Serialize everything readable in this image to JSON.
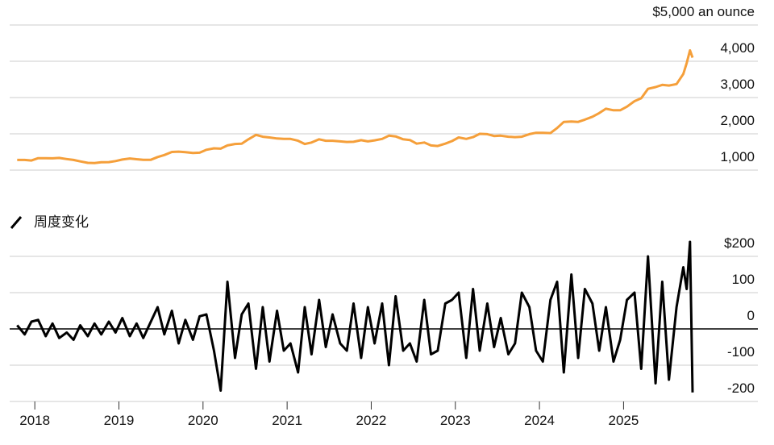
{
  "chart_data": [
    {
      "type": "line",
      "color": "#f59f3a",
      "x": [
        2017.79,
        2017.88,
        2017.96,
        2018.04,
        2018.13,
        2018.21,
        2018.29,
        2018.38,
        2018.46,
        2018.54,
        2018.63,
        2018.71,
        2018.79,
        2018.88,
        2018.96,
        2019.04,
        2019.13,
        2019.21,
        2019.29,
        2019.38,
        2019.46,
        2019.54,
        2019.63,
        2019.71,
        2019.79,
        2019.88,
        2019.96,
        2020.04,
        2020.13,
        2020.21,
        2020.29,
        2020.38,
        2020.46,
        2020.54,
        2020.63,
        2020.71,
        2020.79,
        2020.88,
        2020.96,
        2021.04,
        2021.13,
        2021.21,
        2021.29,
        2021.38,
        2021.46,
        2021.54,
        2021.63,
        2021.71,
        2021.79,
        2021.88,
        2021.96,
        2022.04,
        2022.13,
        2022.21,
        2022.29,
        2022.38,
        2022.46,
        2022.54,
        2022.63,
        2022.71,
        2022.79,
        2022.88,
        2022.96,
        2023.04,
        2023.13,
        2023.21,
        2023.29,
        2023.38,
        2023.46,
        2023.54,
        2023.63,
        2023.71,
        2023.79,
        2023.88,
        2023.96,
        2024.04,
        2024.13,
        2024.21,
        2024.29,
        2024.38,
        2024.46,
        2024.54,
        2024.63,
        2024.71,
        2024.79,
        2024.88,
        2024.96,
        2025.04,
        2025.13,
        2025.21,
        2025.29,
        2025.38,
        2025.46,
        2025.54,
        2025.63,
        2025.71,
        2025.75,
        2025.79,
        2025.82
      ],
      "values": [
        1280,
        1280,
        1265,
        1330,
        1330,
        1325,
        1335,
        1305,
        1280,
        1240,
        1200,
        1195,
        1215,
        1220,
        1250,
        1290,
        1320,
        1300,
        1285,
        1285,
        1360,
        1415,
        1500,
        1510,
        1495,
        1470,
        1480,
        1560,
        1600,
        1590,
        1680,
        1720,
        1730,
        1850,
        1970,
        1920,
        1900,
        1870,
        1860,
        1860,
        1810,
        1720,
        1760,
        1850,
        1810,
        1810,
        1790,
        1775,
        1780,
        1825,
        1790,
        1820,
        1860,
        1950,
        1930,
        1850,
        1830,
        1730,
        1760,
        1680,
        1665,
        1730,
        1800,
        1900,
        1860,
        1910,
        2000,
        1990,
        1940,
        1950,
        1920,
        1910,
        1920,
        1990,
        2030,
        2030,
        2020,
        2160,
        2330,
        2340,
        2330,
        2390,
        2470,
        2570,
        2690,
        2650,
        2650,
        2750,
        2900,
        2980,
        3240,
        3290,
        3350,
        3330,
        3370,
        3650,
        3950,
        4300,
        4100
      ],
      "xlim": [
        2017.73,
        2025.83
      ],
      "ylim": [
        1000,
        5000
      ],
      "yticks": [
        {
          "value": 1000,
          "label": "1,000"
        },
        {
          "value": 2000,
          "label": "2,000"
        },
        {
          "value": 3000,
          "label": "3,000"
        },
        {
          "value": 4000,
          "label": "4,000"
        },
        {
          "value": 5000,
          "label": "$5,000 an ounce"
        }
      ],
      "grid": true
    },
    {
      "type": "line",
      "color": "#000000",
      "title": "周度变化",
      "x": [
        2017.79,
        2017.88,
        2017.96,
        2018.04,
        2018.13,
        2018.21,
        2018.29,
        2018.38,
        2018.46,
        2018.54,
        2018.63,
        2018.71,
        2018.79,
        2018.88,
        2018.96,
        2019.04,
        2019.13,
        2019.21,
        2019.29,
        2019.38,
        2019.46,
        2019.54,
        2019.63,
        2019.71,
        2019.79,
        2019.88,
        2019.96,
        2020.04,
        2020.13,
        2020.21,
        2020.29,
        2020.38,
        2020.46,
        2020.54,
        2020.63,
        2020.71,
        2020.79,
        2020.88,
        2020.96,
        2021.04,
        2021.13,
        2021.21,
        2021.29,
        2021.38,
        2021.46,
        2021.54,
        2021.63,
        2021.71,
        2021.79,
        2021.88,
        2021.96,
        2022.04,
        2022.13,
        2022.21,
        2022.29,
        2022.38,
        2022.46,
        2022.54,
        2022.63,
        2022.71,
        2022.79,
        2022.88,
        2022.96,
        2023.04,
        2023.13,
        2023.21,
        2023.29,
        2023.38,
        2023.46,
        2023.54,
        2023.63,
        2023.71,
        2023.79,
        2023.88,
        2023.96,
        2024.04,
        2024.13,
        2024.21,
        2024.29,
        2024.38,
        2024.46,
        2024.54,
        2024.63,
        2024.71,
        2024.79,
        2024.88,
        2024.96,
        2025.04,
        2025.13,
        2025.21,
        2025.29,
        2025.38,
        2025.46,
        2025.54,
        2025.63,
        2025.71,
        2025.75,
        2025.79,
        2025.82
      ],
      "values": [
        10,
        -15,
        20,
        25,
        -20,
        15,
        -25,
        -10,
        -30,
        10,
        -20,
        15,
        -15,
        20,
        -10,
        30,
        -20,
        15,
        -25,
        20,
        60,
        -15,
        50,
        -40,
        25,
        -30,
        35,
        40,
        -60,
        -170,
        130,
        -80,
        40,
        70,
        -110,
        60,
        -90,
        50,
        -60,
        -40,
        -120,
        60,
        -70,
        80,
        -50,
        40,
        -40,
        -60,
        70,
        -80,
        60,
        -40,
        70,
        -100,
        90,
        -60,
        -40,
        -90,
        80,
        -70,
        -60,
        70,
        80,
        100,
        -80,
        110,
        -60,
        70,
        -50,
        30,
        -70,
        -40,
        100,
        60,
        -60,
        -90,
        80,
        130,
        -120,
        150,
        -80,
        110,
        70,
        -60,
        60,
        -90,
        -30,
        80,
        100,
        -110,
        200,
        -150,
        130,
        -140,
        60,
        170,
        110,
        240,
        -175
      ],
      "xlim": [
        2017.73,
        2025.83
      ],
      "ylim": [
        -200,
        200
      ],
      "yticks": [
        {
          "value": 200,
          "label": "$200"
        },
        100,
        0,
        -100,
        -200
      ],
      "xticks": [
        2018,
        2019,
        2020,
        2021,
        2022,
        2023,
        2024,
        2025
      ],
      "grid": true
    }
  ]
}
